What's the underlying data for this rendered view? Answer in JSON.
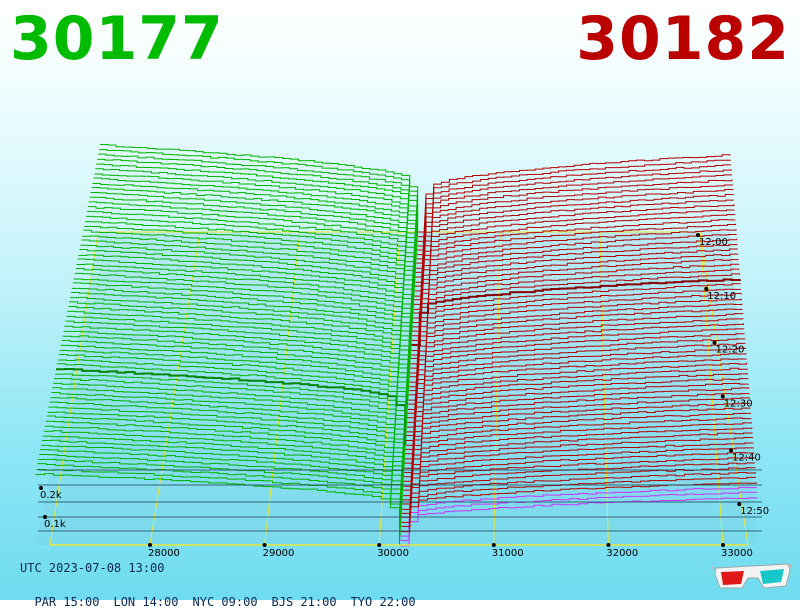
{
  "header": {
    "bid_price": "30177",
    "ask_price": "30182",
    "bid_color": "#00bb00",
    "ask_color": "#bb0000"
  },
  "chart_data": {
    "type": "area",
    "kind": "order-book depth over time (3D surface)",
    "price_ticks": [
      28000,
      29000,
      30000,
      31000,
      32000,
      33000
    ],
    "price_tick_labels": [
      "28000",
      "29000",
      "30000",
      "31000",
      "32000",
      "33000"
    ],
    "time_labels": [
      "12:00",
      "12:10",
      "12:20",
      "12:30",
      "12:40",
      "12:50"
    ],
    "volume_labels": [
      "0.2k",
      "0.1k"
    ],
    "mid_price": 30180,
    "bid_depth_far_k": 0.62,
    "ask_depth_far_k": 0.55,
    "grid": true,
    "series": [
      {
        "side": "bid",
        "color": "#00b400",
        "range": [
          27000,
          30177
        ]
      },
      {
        "side": "ask",
        "color": "#b40000",
        "range": [
          30182,
          33300
        ]
      }
    ]
  },
  "footer": {
    "utc": "UTC 2023-07-08 13:00",
    "zones": [
      "PAR 15:00",
      "LON 14:00",
      "NYC 09:00",
      "BJS 21:00",
      "TYO 22:00"
    ]
  },
  "glasses_icon": "3d-glasses-icon"
}
